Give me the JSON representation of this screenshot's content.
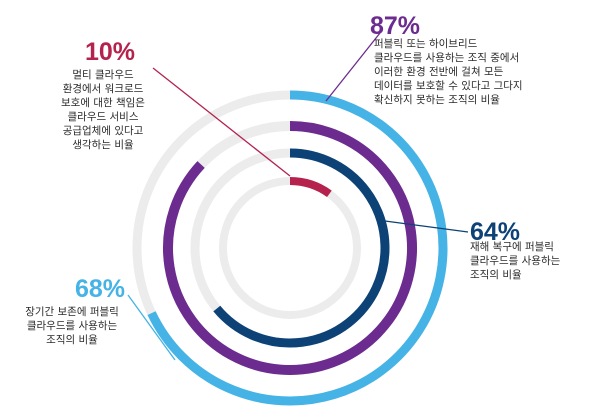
{
  "chart_data": {
    "type": "radial-bar",
    "unit": "%",
    "track_color": "#ececec",
    "series": [
      {
        "value": 68,
        "label": "68%",
        "color": "#45b3e5",
        "description": [
          "장기간 보존에 퍼블릭",
          "클라우드를 사용하는",
          "조직의 비율"
        ]
      },
      {
        "value": 87,
        "label": "87%",
        "color": "#6c2b8f",
        "description": [
          "퍼블릭 또는 하이브리드",
          "클라우드를 사용하는 조직 중에서",
          "이러한 환경 전반에 걸쳐 모든",
          "데이터를 보호할 수 있다고 그다지",
          "확신하지 못하는 조직의 비율"
        ]
      },
      {
        "value": 64,
        "label": "64%",
        "color": "#0d4277",
        "description": [
          "재해 복구에 퍼블릭",
          "클라우드를 사용하는",
          "조직의 비율"
        ]
      },
      {
        "value": 10,
        "label": "10%",
        "color": "#b5224d",
        "description": [
          "멀티 클라우드",
          "환경에서 워크로드",
          "보호에 대한 책임은",
          "클라우드 서비스",
          "공급업체에 있다고",
          "생각하는 비율"
        ]
      }
    ]
  }
}
